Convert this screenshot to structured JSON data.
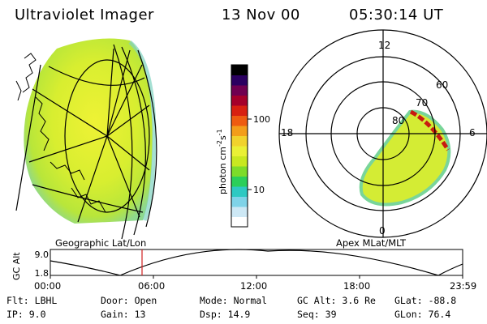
{
  "header": {
    "instrument": "Ultraviolet Imager",
    "date": "13 Nov 00",
    "time": "05:30:14 UT"
  },
  "left_panel": {
    "caption": "Geographic Lat/Lon"
  },
  "right_panel": {
    "caption": "Apex MLat/MLT",
    "mlt_labels": [
      "12",
      "18",
      "6",
      "0"
    ],
    "lat_labels": [
      "60",
      "70",
      "80"
    ]
  },
  "colorbar": {
    "unit_label": "photon cm",
    "unit_exp1": "-2",
    "unit_mid": "s",
    "unit_exp2": "-1",
    "tick_100": "100",
    "tick_10": "10",
    "colors": [
      "#ffffff",
      "#cde8f5",
      "#7fd3e8",
      "#2ec9c2",
      "#2bcf5a",
      "#7ddc2a",
      "#c8e820",
      "#eaf035",
      "#f1d22c",
      "#f39d1a",
      "#ee5b10",
      "#d82010",
      "#a5002a",
      "#700050",
      "#2b0060",
      "#000000"
    ]
  },
  "altitude_plot": {
    "ylabel": "GC Alt",
    "y_top": "9.0",
    "y_bottom": "1.8",
    "x_ticks": [
      "00:00",
      "06:00",
      "12:00",
      "18:00",
      "23:59"
    ],
    "curve_color": "#000000",
    "marker_color": "#d02020"
  },
  "status": {
    "flt_label": "Flt:",
    "flt_value": "LBHL",
    "ip_label": "IP:",
    "ip_value": "9.0",
    "door_label": "Door:",
    "door_value": "Open",
    "gain_label": "Gain:",
    "gain_value": "13",
    "mode_label": "Mode:",
    "mode_value": "Normal",
    "dsp_label": "Dsp:",
    "dsp_value": "14.9",
    "gcalt_label": "GC Alt:",
    "gcalt_value": "3.6 Re",
    "seq_label": "Seq:",
    "seq_value": "39",
    "glat_label": "GLat:",
    "glat_value": "-88.8",
    "glon_label": "GLon:",
    "glon_value": "76.4"
  }
}
